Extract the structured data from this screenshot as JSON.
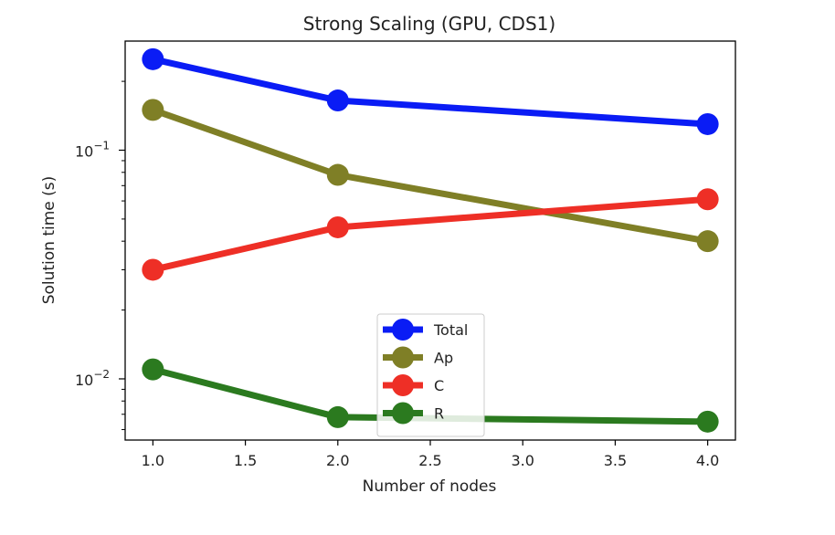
{
  "chart_data": {
    "type": "line",
    "title": "Strong Scaling (GPU, CDS1)",
    "xlabel": "Number of nodes",
    "ylabel": "Solution time (s)",
    "xscale": "linear",
    "yscale": "log",
    "xlim": [
      0.85,
      4.15
    ],
    "ylim": [
      0.0054,
      0.3
    ],
    "xticks": [
      1.0,
      1.5,
      2.0,
      2.5,
      3.0,
      3.5,
      4.0
    ],
    "xtick_labels": [
      "1.0",
      "1.5",
      "2.0",
      "2.5",
      "3.0",
      "3.5",
      "4.0"
    ],
    "yticks": [
      0.01,
      0.1
    ],
    "ytick_labels": [
      {
        "base": "10",
        "exp": "−2"
      },
      {
        "base": "10",
        "exp": "−1"
      }
    ],
    "grid": false,
    "legend_position": "lower center",
    "x": [
      1,
      2,
      4
    ],
    "series": [
      {
        "name": "Total",
        "color": "#0a1cf5",
        "values": [
          0.25,
          0.165,
          0.13
        ]
      },
      {
        "name": "Ap",
        "color": "#7f7f26",
        "values": [
          0.15,
          0.078,
          0.04
        ]
      },
      {
        "name": "C",
        "color": "#ee2f26",
        "values": [
          0.03,
          0.046,
          0.061
        ]
      },
      {
        "name": "R",
        "color": "#2b7a1f",
        "values": [
          0.011,
          0.0068,
          0.0065
        ]
      }
    ]
  }
}
